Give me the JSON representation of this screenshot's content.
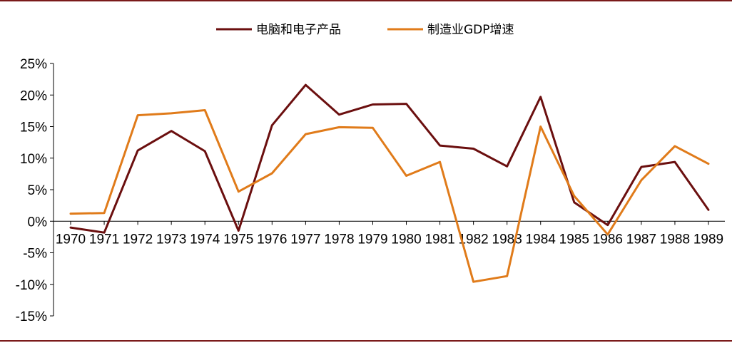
{
  "chart_data": {
    "type": "line",
    "title": "",
    "xlabel": "",
    "ylabel": "",
    "x": [
      "1970",
      "1971",
      "1972",
      "1973",
      "1974",
      "1975",
      "1976",
      "1977",
      "1978",
      "1979",
      "1980",
      "1981",
      "1982",
      "1983",
      "1984",
      "1985",
      "1986",
      "1987",
      "1988",
      "1989"
    ],
    "ylim": [
      -15,
      25
    ],
    "yticks": [
      25,
      20,
      15,
      10,
      5,
      0,
      -5,
      -10,
      -15
    ],
    "ytick_labels": [
      "25%",
      "20%",
      "15%",
      "10%",
      "5%",
      "0%",
      "-5%",
      "-10%",
      "-15%"
    ],
    "grid": false,
    "legend_position": "top",
    "series": [
      {
        "name": "电脑和电子产品",
        "color": "#6b0f0f",
        "values": [
          -1.0,
          -1.8,
          11.2,
          14.3,
          11.1,
          -1.5,
          15.2,
          21.6,
          16.9,
          18.5,
          18.6,
          12.0,
          11.5,
          8.7,
          19.7,
          3.0,
          -0.6,
          8.6,
          9.4,
          1.8
        ]
      },
      {
        "name": "制造业GDP增速",
        "color": "#e07b1a",
        "values": [
          1.2,
          1.3,
          16.8,
          17.1,
          17.6,
          4.7,
          7.6,
          13.8,
          14.9,
          14.8,
          7.2,
          9.4,
          -9.6,
          -8.7,
          15.0,
          4.0,
          -2.1,
          6.5,
          11.9,
          9.1
        ]
      }
    ]
  }
}
